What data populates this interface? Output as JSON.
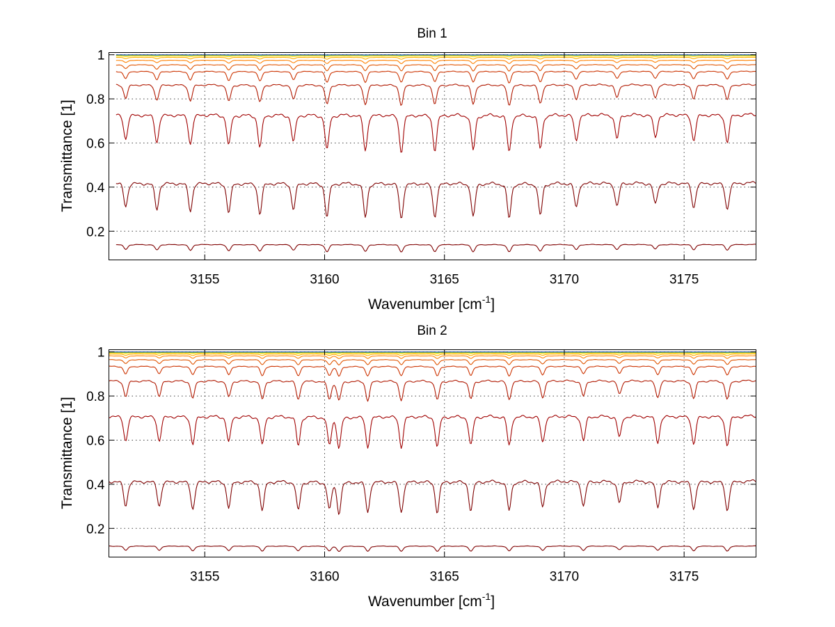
{
  "chart_data": [
    {
      "type": "line",
      "title": "Bin 1",
      "xlabel": "Wavenumber [cm",
      "xlabel_superscript": "-1",
      "xlabel_close": "]",
      "ylabel": "Transmittance [1]",
      "xlim": [
        3151.0,
        3178.0
      ],
      "ylim": [
        0.07,
        1.01
      ],
      "xticks": [
        3155,
        3160,
        3165,
        3170,
        3175
      ],
      "yticks": [
        0.2,
        0.4,
        0.6,
        0.8,
        1.0
      ],
      "ytick_labels": [
        "0.2",
        "0.4",
        "0.6",
        "0.8",
        "1"
      ],
      "grid": true,
      "spectrum_range": [
        3151.3,
        3178.0
      ],
      "line_positions": [
        3151.7,
        3153.0,
        3154.4,
        3156.0,
        3157.3,
        3158.7,
        3160.1,
        3161.7,
        3163.2,
        3164.6,
        3166.2,
        3167.7,
        3169.0,
        3170.5,
        3172.2,
        3173.8,
        3175.4,
        3176.8
      ],
      "line_strengths": [
        0.75,
        0.85,
        0.9,
        0.95,
        1.0,
        0.85,
        1.1,
        1.1,
        1.15,
        1.1,
        1.1,
        1.15,
        1.05,
        0.8,
        0.75,
        0.7,
        0.8,
        0.85
      ],
      "series": [
        {
          "baseline": 0.14,
          "depth_scale": 0.2,
          "color": "#7f0000"
        },
        {
          "baseline": 0.42,
          "depth_scale": 0.95,
          "color": "#7f0000"
        },
        {
          "baseline": 0.73,
          "depth_scale": 1.0,
          "color": "#a00000"
        },
        {
          "baseline": 0.865,
          "depth_scale": 0.55,
          "color": "#b01800"
        },
        {
          "baseline": 0.925,
          "depth_scale": 0.3,
          "color": "#cc3300"
        },
        {
          "baseline": 0.955,
          "depth_scale": 0.17,
          "color": "#e05500"
        },
        {
          "baseline": 0.975,
          "depth_scale": 0.09,
          "color": "#ff8000"
        },
        {
          "baseline": 0.988,
          "depth_scale": 0.05,
          "color": "#ffb000"
        },
        {
          "baseline": 0.994,
          "depth_scale": 0.025,
          "color": "#ffdd00"
        },
        {
          "baseline": 0.998,
          "depth_scale": 0.012,
          "color": "#c8e000"
        },
        {
          "baseline": 0.999,
          "depth_scale": 0.006,
          "color": "#00c8c0"
        },
        {
          "baseline": 0.9995,
          "depth_scale": 0.003,
          "color": "#1040a0"
        }
      ]
    },
    {
      "type": "line",
      "title": "Bin 2",
      "xlabel": "Wavenumber [cm",
      "xlabel_superscript": "-1",
      "xlabel_close": "]",
      "ylabel": "Transmittance [1]",
      "xlim": [
        3151.0,
        3178.0
      ],
      "ylim": [
        0.07,
        1.01
      ],
      "xticks": [
        3155,
        3160,
        3165,
        3170,
        3175
      ],
      "yticks": [
        0.2,
        0.4,
        0.6,
        0.8,
        1.0
      ],
      "ytick_labels": [
        "0.2",
        "0.4",
        "0.6",
        "0.8",
        "1"
      ],
      "grid": true,
      "spectrum_range": [
        3151.0,
        3178.0
      ],
      "line_positions": [
        3151.7,
        3153.1,
        3154.5,
        3156.0,
        3157.4,
        3158.9,
        3160.2,
        3160.6,
        3161.8,
        3163.2,
        3164.7,
        3166.1,
        3167.7,
        3169.1,
        3170.8,
        3172.3,
        3173.9,
        3175.4,
        3176.8
      ],
      "line_strengths": [
        0.8,
        0.8,
        0.9,
        0.85,
        0.95,
        0.95,
        0.9,
        1.0,
        1.0,
        1.0,
        1.0,
        0.95,
        0.95,
        0.85,
        0.8,
        0.7,
        0.85,
        0.9,
        0.95
      ],
      "series": [
        {
          "baseline": 0.12,
          "depth_scale": 0.16,
          "color": "#7f0000"
        },
        {
          "baseline": 0.415,
          "depth_scale": 0.95,
          "color": "#7f0000"
        },
        {
          "baseline": 0.71,
          "depth_scale": 0.95,
          "color": "#a00000"
        },
        {
          "baseline": 0.87,
          "depth_scale": 0.6,
          "color": "#b01800"
        },
        {
          "baseline": 0.935,
          "depth_scale": 0.3,
          "color": "#cc3300"
        },
        {
          "baseline": 0.965,
          "depth_scale": 0.16,
          "color": "#e05500"
        },
        {
          "baseline": 0.982,
          "depth_scale": 0.08,
          "color": "#ff8000"
        },
        {
          "baseline": 0.99,
          "depth_scale": 0.045,
          "color": "#ffb000"
        },
        {
          "baseline": 0.995,
          "depth_scale": 0.022,
          "color": "#ffdd00"
        },
        {
          "baseline": 0.998,
          "depth_scale": 0.011,
          "color": "#c8e000"
        },
        {
          "baseline": 0.9992,
          "depth_scale": 0.005,
          "color": "#00c8c0"
        },
        {
          "baseline": 0.9997,
          "depth_scale": 0.0025,
          "color": "#1040a0"
        }
      ]
    }
  ]
}
